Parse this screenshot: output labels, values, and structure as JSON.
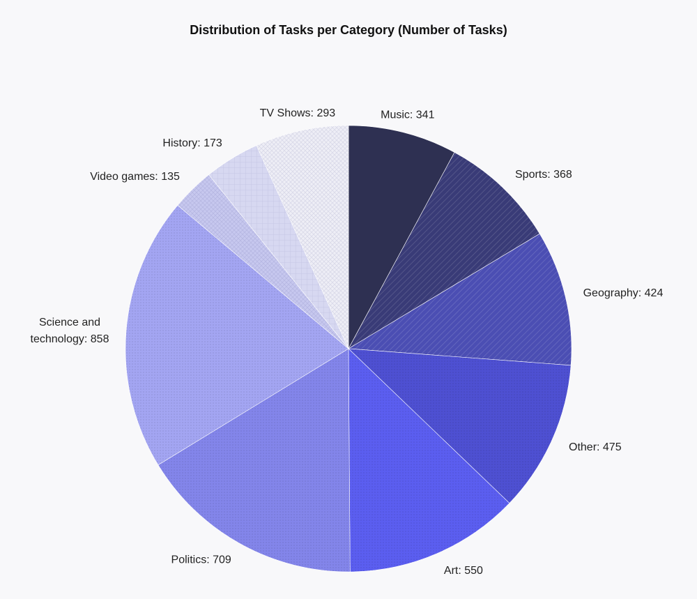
{
  "chart_data": {
    "type": "pie",
    "title": "Distribution of Tasks per Category (Number of Tasks)",
    "slices": [
      {
        "label": "Music",
        "value": 341,
        "color": "#2e3052",
        "pattern": "none",
        "label_text": "Music: 341"
      },
      {
        "label": "Sports",
        "value": 368,
        "color": "#393b77",
        "pattern": "diag",
        "label_text": "Sports: 368"
      },
      {
        "label": "Geography",
        "value": 424,
        "color": "#4b4eb3",
        "pattern": "diag",
        "label_text": "Geography: 424"
      },
      {
        "label": "Other",
        "value": 475,
        "color": "#4e50d2",
        "pattern": "dots",
        "label_text": "Other: 475"
      },
      {
        "label": "Art",
        "value": 550,
        "color": "#5b5ef0",
        "pattern": "dots",
        "label_text": "Art: 550"
      },
      {
        "label": "Politics",
        "value": 709,
        "color": "#8385ea",
        "pattern": "dots",
        "label_text": "Politics: 709"
      },
      {
        "label": "Science and technology",
        "value": 858,
        "color": "#a3a5f2",
        "pattern": "dots",
        "label_lines": [
          "Science and",
          "technology: 858"
        ]
      },
      {
        "label": "Video games",
        "value": 135,
        "color": "#c7c8ef",
        "pattern": "cross",
        "label_text": "Video games: 135"
      },
      {
        "label": "History",
        "value": 173,
        "color": "#d7d8f1",
        "pattern": "grid",
        "label_text": "History: 173"
      },
      {
        "label": "TV Shows",
        "value": 293,
        "color": "#eeeef6",
        "pattern": "cross",
        "label_text": "TV Shows: 293"
      }
    ]
  }
}
